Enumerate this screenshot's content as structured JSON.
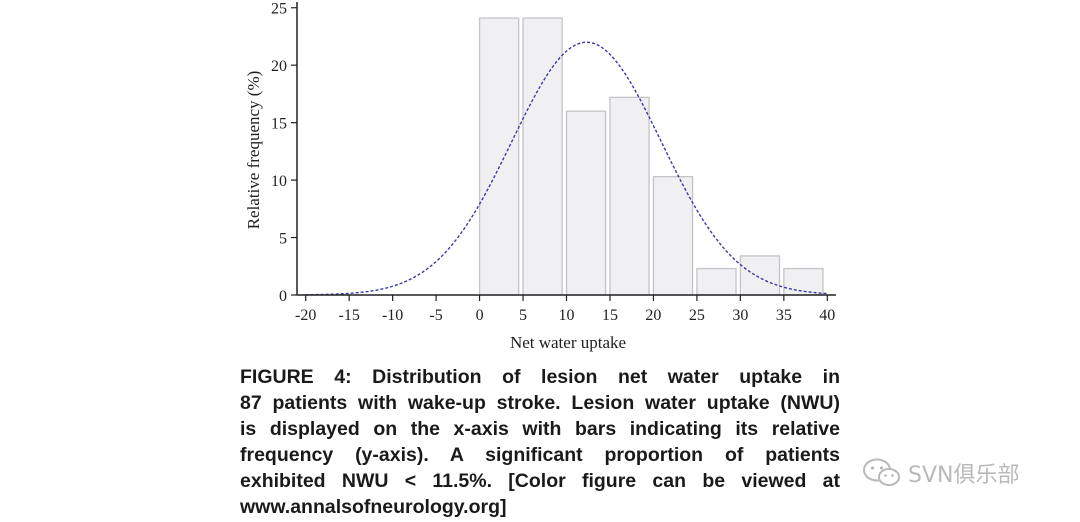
{
  "chart_data": {
    "type": "bar",
    "xlabel": "Net water uptake",
    "ylabel": "Relative frequency (%)",
    "xlim": [
      -21,
      41
    ],
    "ylim": [
      0,
      25.5
    ],
    "xticks": [
      "-20",
      "-15",
      "-10",
      "-5",
      "0",
      "5",
      "10",
      "15",
      "20",
      "25",
      "30",
      "35",
      "40"
    ],
    "yticks": [
      "0",
      "5",
      "10",
      "15",
      "20",
      "25"
    ],
    "bins": [
      {
        "start": 0,
        "end": 4.5,
        "value": 24.1
      },
      {
        "start": 5,
        "end": 9.5,
        "value": 24.1
      },
      {
        "start": 10,
        "end": 14.5,
        "value": 16.0
      },
      {
        "start": 15,
        "end": 19.5,
        "value": 17.2
      },
      {
        "start": 20,
        "end": 24.5,
        "value": 10.3
      },
      {
        "start": 25,
        "end": 29.5,
        "value": 2.3
      },
      {
        "start": 30,
        "end": 34.5,
        "value": 3.4
      },
      {
        "start": 35,
        "end": 39.5,
        "value": 2.3
      }
    ],
    "normal_fit": {
      "mean": 12.3,
      "sd": 8.6,
      "peak": 22.0,
      "range": [
        -20,
        40
      ]
    },
    "colors": {
      "bar_fill": "#f0f0f3",
      "bar_stroke": "#c4c4c8",
      "curve": "#3a3aa8",
      "axis": "#222222"
    }
  },
  "caption": {
    "lines": [
      "FIGURE 4: Distribution of lesion net water uptake in",
      "87 patients with wake-up stroke. Lesion water uptake (NWU)",
      "is displayed on the x-axis with bars indicating its relative",
      "frequency (y-axis). A significant proportion of patients",
      "exhibited NWU < 11.5%. [Color figure can be viewed at",
      "www.annalsofneurology.org]"
    ]
  },
  "watermark": {
    "icon": "wechat-icon",
    "text": "SVN俱乐部"
  }
}
